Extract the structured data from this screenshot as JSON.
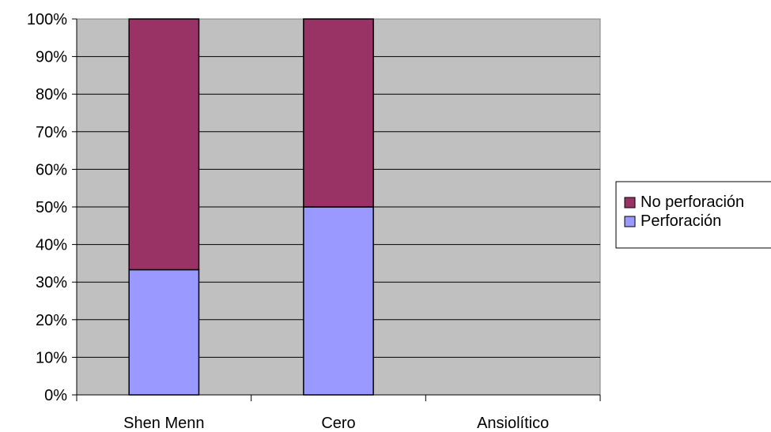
{
  "chart_data": {
    "type": "bar",
    "stacked": "percent",
    "categories": [
      "Shen Menn",
      "Cero",
      "Ansiolítico"
    ],
    "series": [
      {
        "name": "Perforación",
        "values": [
          33.3,
          50,
          0
        ],
        "color": "#9999ff"
      },
      {
        "name": "No perforación",
        "values": [
          66.7,
          50,
          0
        ],
        "color": "#993366"
      }
    ],
    "yticks": [
      "0%",
      "10%",
      "20%",
      "30%",
      "40%",
      "50%",
      "60%",
      "70%",
      "80%",
      "90%",
      "100%"
    ],
    "ylim": [
      0,
      100
    ],
    "grid": true,
    "legend_position": "right",
    "legend_order": [
      "No perforación",
      "Perforación"
    ],
    "plot_background": "#c0c0c0"
  }
}
